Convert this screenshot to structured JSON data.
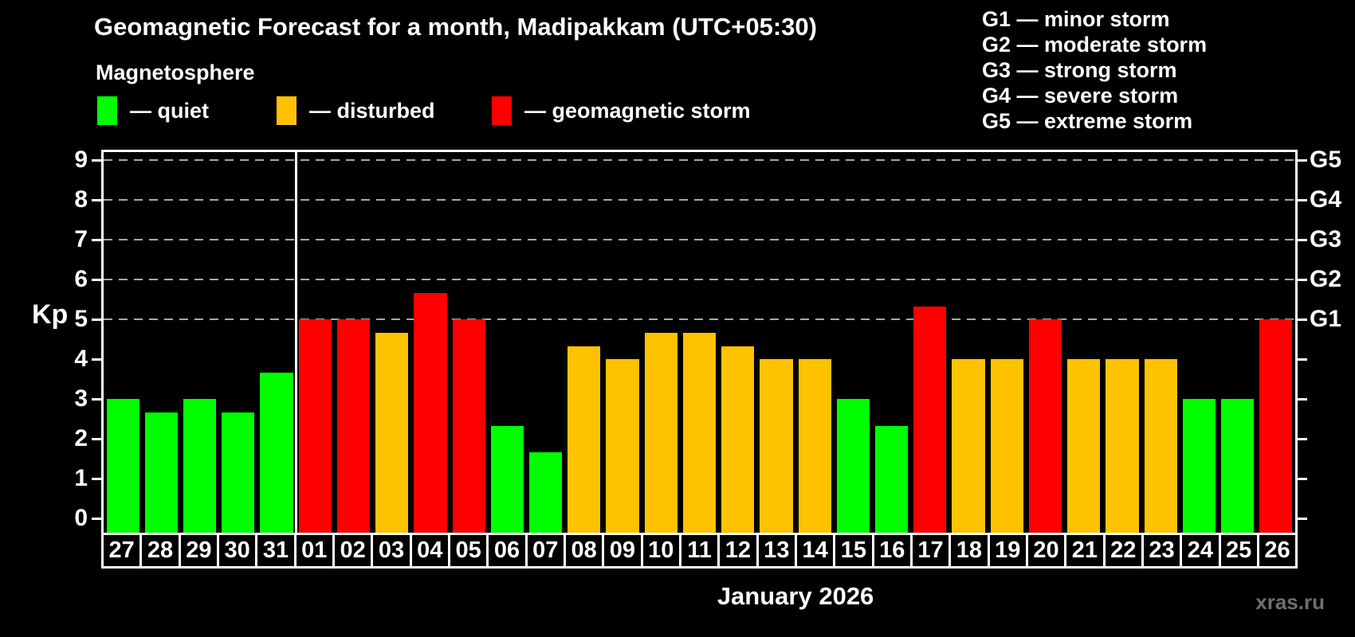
{
  "chart_data": {
    "type": "bar",
    "title": "Geomagnetic Forecast for a month, Madipakkam (UTC+05:30)",
    "subtitle": "Magnetosphere",
    "ylabel": "Kp",
    "month_label": "January 2026",
    "watermark": "xras.ru",
    "ylim": [
      0,
      9
    ],
    "yticks": [
      0,
      1,
      2,
      3,
      4,
      5,
      6,
      7,
      8,
      9
    ],
    "dashed_gridlines_at": [
      5,
      6,
      7,
      8,
      9
    ],
    "right_axis": [
      {
        "value": 5,
        "label": "G1"
      },
      {
        "value": 6,
        "label": "G2"
      },
      {
        "value": 7,
        "label": "G3"
      },
      {
        "value": 8,
        "label": "G4"
      },
      {
        "value": 9,
        "label": "G5"
      }
    ],
    "legend": {
      "items": [
        {
          "level": "quiet",
          "label": "— quiet"
        },
        {
          "level": "disturbed",
          "label": "— disturbed"
        },
        {
          "level": "storm",
          "label": "— geomagnetic storm"
        }
      ]
    },
    "g_scale_legend": [
      "G1 — minor storm",
      "G2 — moderate storm",
      "G3 — strong storm",
      "G4 — severe storm",
      "G5 — extreme storm"
    ],
    "colors": {
      "quiet": "#00ff00",
      "disturbed": "#ffc200",
      "storm": "#ff0000",
      "grid": "#a8a8a8",
      "axis": "#ffffff",
      "watermark": "#6f6f6f"
    },
    "month_separator_after_label": "31",
    "days": [
      {
        "label": "27",
        "value": 3,
        "level": "quiet"
      },
      {
        "label": "28",
        "value": 2.67,
        "level": "quiet"
      },
      {
        "label": "29",
        "value": 3,
        "level": "quiet"
      },
      {
        "label": "30",
        "value": 2.67,
        "level": "quiet"
      },
      {
        "label": "31",
        "value": 3.67,
        "level": "quiet"
      },
      {
        "label": "01",
        "value": 5,
        "level": "storm"
      },
      {
        "label": "02",
        "value": 5,
        "level": "storm"
      },
      {
        "label": "03",
        "value": 4.67,
        "level": "disturbed"
      },
      {
        "label": "04",
        "value": 5.67,
        "level": "storm"
      },
      {
        "label": "05",
        "value": 5,
        "level": "storm"
      },
      {
        "label": "06",
        "value": 2.33,
        "level": "quiet"
      },
      {
        "label": "07",
        "value": 1.67,
        "level": "quiet"
      },
      {
        "label": "08",
        "value": 4.33,
        "level": "disturbed"
      },
      {
        "label": "09",
        "value": 4,
        "level": "disturbed"
      },
      {
        "label": "10",
        "value": 4.67,
        "level": "disturbed"
      },
      {
        "label": "11",
        "value": 4.67,
        "level": "disturbed"
      },
      {
        "label": "12",
        "value": 4.33,
        "level": "disturbed"
      },
      {
        "label": "13",
        "value": 4,
        "level": "disturbed"
      },
      {
        "label": "14",
        "value": 4,
        "level": "disturbed"
      },
      {
        "label": "15",
        "value": 3,
        "level": "quiet"
      },
      {
        "label": "16",
        "value": 2.33,
        "level": "quiet"
      },
      {
        "label": "17",
        "value": 5.33,
        "level": "storm"
      },
      {
        "label": "18",
        "value": 4,
        "level": "disturbed"
      },
      {
        "label": "19",
        "value": 4,
        "level": "disturbed"
      },
      {
        "label": "20",
        "value": 5,
        "level": "storm"
      },
      {
        "label": "21",
        "value": 4,
        "level": "disturbed"
      },
      {
        "label": "22",
        "value": 4,
        "level": "disturbed"
      },
      {
        "label": "23",
        "value": 4,
        "level": "disturbed"
      },
      {
        "label": "24",
        "value": 3,
        "level": "quiet"
      },
      {
        "label": "25",
        "value": 3,
        "level": "quiet"
      },
      {
        "label": "26",
        "value": 5,
        "level": "storm"
      }
    ]
  }
}
